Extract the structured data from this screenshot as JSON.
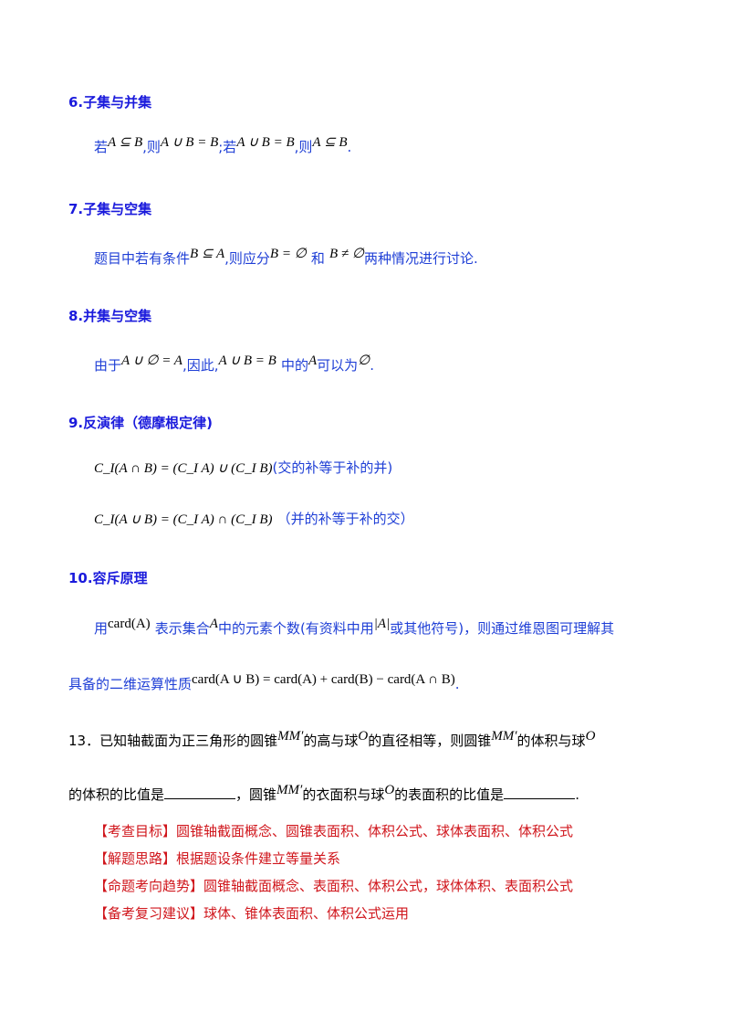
{
  "s6": {
    "heading": "6.子集与并集",
    "t1": "若",
    "m1": "A ⊆ B",
    "t2": ",则",
    "m2": "A ∪ B = B",
    "t3": ";若",
    "m3": "A ∪ B = B",
    "t4": ",则",
    "m4": "A ⊆ B",
    "t5": "."
  },
  "s7": {
    "heading": "7.子集与空集",
    "t1": "题目中若有条件",
    "m1": "B ⊆ A",
    "t2": ",则应分",
    "m2": "B = ∅",
    "t3": "和",
    "m3": "B ≠ ∅",
    "t4": "两种情况进行讨论."
  },
  "s8": {
    "heading": "8.并集与空集",
    "t1": "由于",
    "m1": "A ∪ ∅ = A",
    "t2": ",因此,",
    "m2": "A ∪ B = B",
    "t3": "中的",
    "m3": "A",
    "t4": "可以为",
    "m4": "∅",
    "t5": "."
  },
  "s9": {
    "heading": "9.反演律（德摩根定律)",
    "f1": "C_I(A ∩ B) = (C_I A) ∪ (C_I B)",
    "n1": "(交的补等于补的并)",
    "f2": "C_I(A ∪ B) = (C_I A) ∩ (C_I B)",
    "n2": "（并的补等于补的交）"
  },
  "s10": {
    "heading": "10.容斥原理",
    "t1": "用",
    "m1": "card(A)",
    "t2": "表示集合",
    "m2": "A",
    "t3": "中的元素个数(有资料中用",
    "m3": "|A|",
    "t4": "或其他符号)，则通过维恩图可理解其",
    "t5": "具备的二维运算性质",
    "m4": "card(A ∪ B) = card(A) + card(B) − card(A ∩ B)",
    "t6": "."
  },
  "q13": {
    "num": "13．",
    "t1": "已知轴截面为正三角形的圆锥",
    "m1": "MM′",
    "t2": "的高与球",
    "m2": "O",
    "t3": "的直径相等，则圆锥",
    "m3": "MM′",
    "t4": "的体积与球",
    "m4": "O",
    "t5": "的体积的比值是",
    "t6": "，圆锥",
    "m5": "MM′",
    "t7": "的衣面积与球",
    "m6": "O",
    "t8": "的表面积的比值是",
    "t9": "."
  },
  "notes": [
    "【考查目标】圆锥轴截面概念、圆锥表面积、体积公式、球体表面积、体积公式",
    "【解题思路】根据题设条件建立等量关系",
    "【命题考向趋势】圆锥轴截面概念、表面积、体积公式，球体体积、表面积公式",
    "【备考复习建议】球体、锥体表面积、体积公式运用"
  ]
}
